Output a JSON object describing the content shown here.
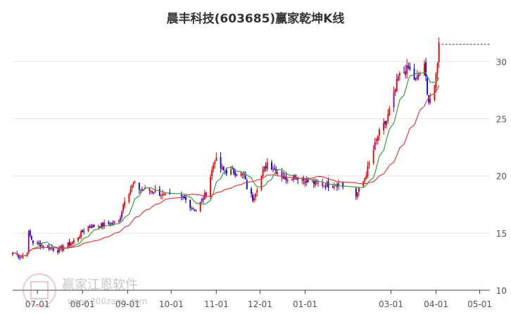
{
  "chart_data": {
    "type": "candlestick",
    "title": "晨丰科技(603685)赢家乾坤K线",
    "y_ticks": [
      10,
      15,
      20,
      25,
      30
    ],
    "ylim": [
      10,
      32.3
    ],
    "x_tick_labels": [
      "07-01",
      "08-01",
      "09-01",
      "10-01",
      "11-01",
      "12-01",
      "01-01",
      "03-01",
      "04-01",
      "05-01"
    ],
    "x_tick_dates": [
      "2024-07-01",
      "2024-08-01",
      "2024-09-01",
      "2024-10-01",
      "2024-11-01",
      "2024-12-01",
      "2025-01-01",
      "2025-03-01",
      "2025-04-01",
      "2025-05-01"
    ],
    "x_range": [
      "2024-06-14",
      "2025-05-08"
    ],
    "grid": "horizontal",
    "colors": {
      "up": "#e60000",
      "down": "#0000e0",
      "special": "#990099",
      "ma_short": "#3c9a3c",
      "ma_long": "#e23c3c"
    },
    "close_anchors": [
      [
        "2024-06-14",
        13.3
      ],
      [
        "2024-06-20",
        12.9
      ],
      [
        "2024-06-24",
        13.4
      ],
      [
        "2024-06-25",
        15.0
      ],
      [
        "2024-06-28",
        14.2
      ],
      [
        "2024-07-05",
        13.9
      ],
      [
        "2024-07-15",
        13.5
      ],
      [
        "2024-07-25",
        14.2
      ],
      [
        "2024-08-05",
        15.6
      ],
      [
        "2024-08-15",
        15.7
      ],
      [
        "2024-08-26",
        16.0
      ],
      [
        "2024-08-30",
        18.0
      ],
      [
        "2024-09-05",
        19.3
      ],
      [
        "2024-09-10",
        18.8
      ],
      [
        "2024-09-20",
        18.7
      ],
      [
        "2024-09-26",
        18.2
      ],
      [
        "2024-10-10",
        18.0
      ],
      [
        "2024-10-15",
        17.3
      ],
      [
        "2024-10-18",
        17.0
      ],
      [
        "2024-10-25",
        18.5
      ],
      [
        "2024-10-31",
        21.5
      ],
      [
        "2024-11-05",
        20.5
      ],
      [
        "2024-11-15",
        20.3
      ],
      [
        "2024-11-20",
        20.0
      ],
      [
        "2024-11-22",
        19.0
      ],
      [
        "2024-11-26",
        18.0
      ],
      [
        "2024-12-02",
        20.0
      ],
      [
        "2024-12-06",
        21.2
      ],
      [
        "2024-12-12",
        20.5
      ],
      [
        "2024-12-18",
        19.8
      ],
      [
        "2024-12-25",
        20.0
      ],
      [
        "2025-01-03",
        19.5
      ],
      [
        "2025-01-15",
        19.2
      ],
      [
        "2025-01-24",
        19.3
      ],
      [
        "2025-02-05",
        18.3
      ],
      [
        "2025-02-10",
        19.5
      ],
      [
        "2025-02-14",
        21.0
      ],
      [
        "2025-02-20",
        23.5
      ],
      [
        "2025-02-26",
        24.8
      ],
      [
        "2025-03-03",
        27.0
      ],
      [
        "2025-03-06",
        28.6
      ],
      [
        "2025-03-13",
        29.4
      ],
      [
        "2025-03-18",
        28.3
      ],
      [
        "2025-03-24",
        29.5
      ],
      [
        "2025-03-27",
        26.5
      ],
      [
        "2025-03-31",
        27.5
      ],
      [
        "2025-04-03",
        31.5
      ]
    ],
    "last_price_line": 31.5
  }
}
